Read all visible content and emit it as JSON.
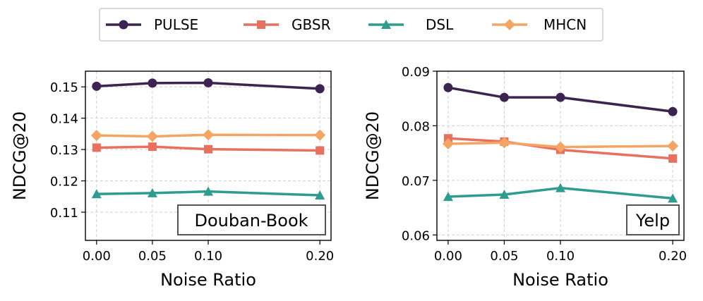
{
  "legend": [
    {
      "name": "PULSE",
      "color": "#3b2550",
      "marker": "circle"
    },
    {
      "name": "GBSR",
      "color": "#e8705f",
      "marker": "square"
    },
    {
      "name": "DSL",
      "color": "#2e9c8e",
      "marker": "triangle"
    },
    {
      "name": "MHCN",
      "color": "#f4a563",
      "marker": "diamond"
    }
  ],
  "chart_data": [
    {
      "type": "line",
      "panel_label": "Douban-Book",
      "xlabel": "Noise Ratio",
      "ylabel": "NDCG@20",
      "x": [
        0.0,
        0.05,
        0.1,
        0.2
      ],
      "x_tick_labels": [
        "0.00",
        "0.05",
        "0.10",
        "0.20"
      ],
      "xlim": [
        -0.01,
        0.21
      ],
      "ylim": [
        0.101,
        0.155
      ],
      "y_ticks": [
        0.11,
        0.12,
        0.13,
        0.14,
        0.15
      ],
      "y_tick_labels": [
        "0.11",
        "0.12",
        "0.13",
        "0.14",
        "0.15"
      ],
      "grid": true,
      "series": [
        {
          "name": "PULSE",
          "values": [
            0.1502,
            0.1512,
            0.1513,
            0.1494
          ]
        },
        {
          "name": "GBSR",
          "values": [
            0.1306,
            0.1309,
            0.1301,
            0.1297
          ]
        },
        {
          "name": "DSL",
          "values": [
            0.1158,
            0.1161,
            0.1166,
            0.1154
          ]
        },
        {
          "name": "MHCN",
          "values": [
            0.1345,
            0.1342,
            0.1347,
            0.1346
          ]
        }
      ]
    },
    {
      "type": "line",
      "panel_label": "Yelp",
      "xlabel": "Noise Ratio",
      "ylabel": "NDCG@20",
      "x": [
        0.0,
        0.05,
        0.1,
        0.2
      ],
      "x_tick_labels": [
        "0.00",
        "0.05",
        "0.10",
        "0.20"
      ],
      "xlim": [
        -0.01,
        0.21
      ],
      "ylim": [
        0.059,
        0.09
      ],
      "y_ticks": [
        0.06,
        0.07,
        0.08,
        0.09
      ],
      "y_tick_labels": [
        "0.06",
        "0.07",
        "0.08",
        "0.09"
      ],
      "grid": true,
      "series": [
        {
          "name": "PULSE",
          "values": [
            0.087,
            0.0852,
            0.0852,
            0.0826
          ]
        },
        {
          "name": "GBSR",
          "values": [
            0.0777,
            0.0771,
            0.0756,
            0.074
          ]
        },
        {
          "name": "DSL",
          "values": [
            0.067,
            0.0674,
            0.0686,
            0.0667
          ]
        },
        {
          "name": "MHCN",
          "values": [
            0.0767,
            0.0769,
            0.0761,
            0.0763
          ]
        }
      ]
    }
  ]
}
